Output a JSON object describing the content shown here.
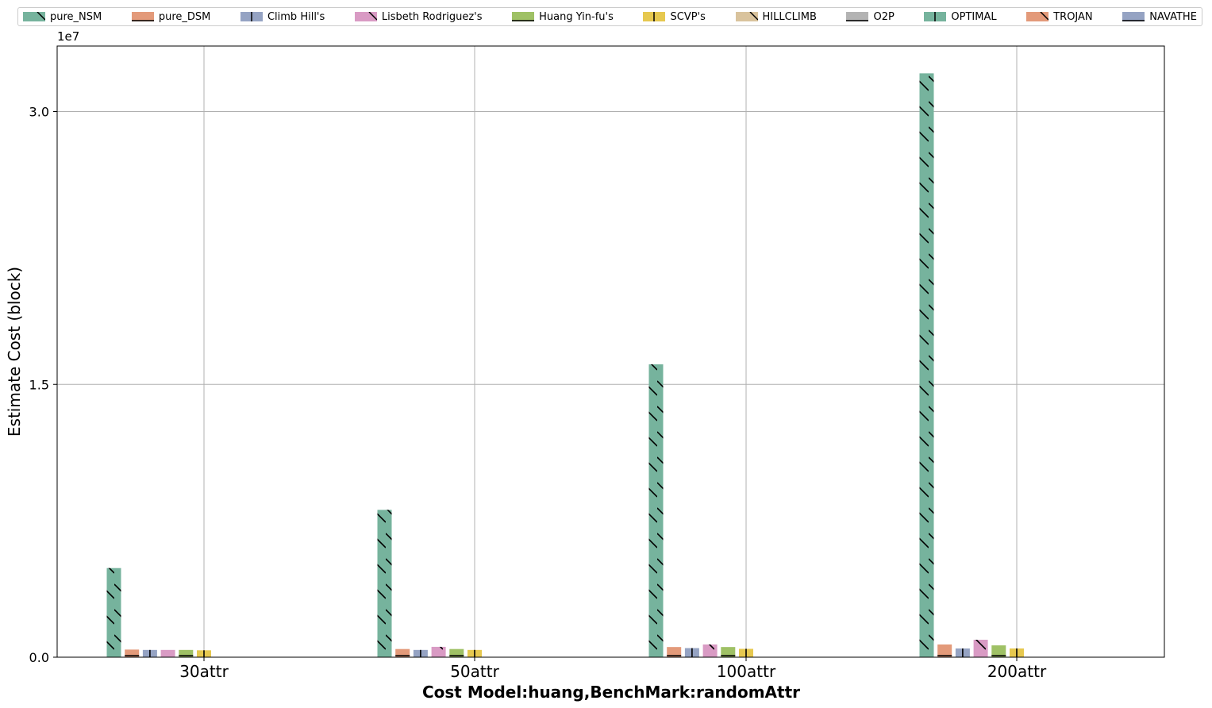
{
  "chart_data": {
    "type": "bar",
    "categories": [
      "30attr",
      "50attr",
      "100attr",
      "200attr"
    ],
    "xlabel": "Cost Model:huang,BenchMark:randomAttr",
    "ylabel": "Estimate Cost (block)",
    "y_multiplier_label": "1e7",
    "ylim": [
      0,
      33600000.0
    ],
    "yticks": [
      0,
      15000000,
      30000000
    ],
    "ytick_labels": [
      "0.0",
      "1.5",
      "3.0"
    ],
    "grid": true,
    "legend_position": "top",
    "series": [
      {
        "name": "pure_NSM",
        "color": "#76b39d",
        "hatch": "diag",
        "values": [
          4900000,
          8100000,
          16100000,
          32100000
        ]
      },
      {
        "name": "pure_DSM",
        "color": "#e39a7a",
        "hatch": "flat",
        "values": [
          420000,
          450000,
          560000,
          700000
        ]
      },
      {
        "name": "Climb Hill's",
        "color": "#95a3c3",
        "hatch": "vert",
        "values": [
          400000,
          400000,
          500000,
          480000
        ]
      },
      {
        "name": "Lisbeth Rodriguez's",
        "color": "#d99bc4",
        "hatch": "diag",
        "values": [
          400000,
          570000,
          700000,
          960000
        ]
      },
      {
        "name": "Huang Yin-fu's",
        "color": "#9fc165",
        "hatch": "flat",
        "values": [
          400000,
          450000,
          560000,
          650000
        ]
      },
      {
        "name": "SCVP's",
        "color": "#e6c84f",
        "hatch": "vert",
        "values": [
          380000,
          400000,
          460000,
          480000
        ]
      },
      {
        "name": "HILLCLIMB",
        "color": "#d9c39d",
        "hatch": "diag",
        "values": [
          0,
          0,
          0,
          0
        ]
      },
      {
        "name": "O2P",
        "color": "#b3b3b3",
        "hatch": "flat",
        "values": [
          0,
          0,
          0,
          0
        ]
      },
      {
        "name": "OPTIMAL",
        "color": "#76b39d",
        "hatch": "vert",
        "values": [
          0,
          0,
          0,
          0
        ]
      },
      {
        "name": "TROJAN",
        "color": "#e39a7a",
        "hatch": "diag",
        "values": [
          0,
          0,
          0,
          0
        ]
      },
      {
        "name": "NAVATHE",
        "color": "#95a3c3",
        "hatch": "flat",
        "values": [
          0,
          0,
          0,
          0
        ]
      }
    ]
  }
}
